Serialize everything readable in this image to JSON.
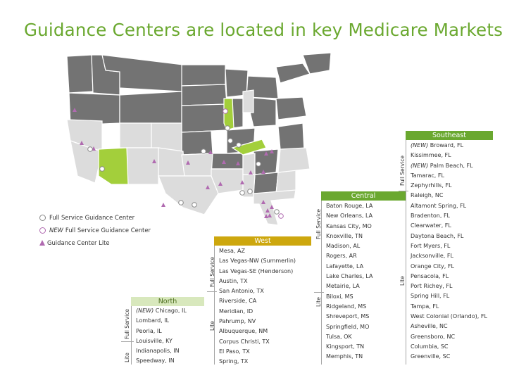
{
  "title": "Guidance Centers are located in key Medicare Markets",
  "colors": {
    "accent_green": "#6aa82f",
    "west_gold": "#cda70e",
    "state_dark": "#737373",
    "state_light": "#dcdcdc",
    "highlight_green": "#a3cf3b",
    "marker_purple": "#b06ab0"
  },
  "legend": {
    "full_service": "Full Service Guidance Center",
    "new_tag": "NEW",
    "new_full_service": "Full Service Guidance Center",
    "lite": "Guidance Center Lite"
  },
  "north": {
    "header": "North",
    "full_service_label": "Full Service",
    "lite_label": "Lite",
    "full_service": [
      {
        "new": "(NEW)",
        "name": "Chicago, IL"
      },
      {
        "new": "",
        "name": "Lombard, IL"
      },
      {
        "new": "",
        "name": "Peoria, IL"
      },
      {
        "new": "",
        "name": "Louisville, KY"
      }
    ],
    "lite": [
      {
        "new": "",
        "name": "Indianapolis, IN"
      },
      {
        "new": "",
        "name": "Speedway, IN"
      }
    ]
  },
  "west": {
    "header": "West",
    "full_service_label": "Full Service",
    "lite_label": "Lite",
    "full_service": [
      "Mesa, AZ",
      "Las Vegas-NW (Summerlin)",
      "Las Vegas-SE (Henderson)",
      "Austin, TX",
      "San Antonio, TX"
    ],
    "lite": [
      "Riverside, CA",
      "Meridian, ID",
      "Pahrump, NV",
      "Albuquerque, NM",
      "Corpus Christi, TX",
      "El Paso, TX",
      "Spring, TX"
    ]
  },
  "central": {
    "header": "Central",
    "full_service_label": "Full Service",
    "lite_label": "Lite",
    "full_service": [
      "Baton Rouge, LA",
      "New Orleans, LA",
      "Kansas City, MO",
      "Knoxville, TN",
      "Madison, AL",
      "Rogers, AR",
      "Lafayette, LA",
      "Lake Charles, LA",
      "Metairie, LA"
    ],
    "lite": [
      "Biloxi, MS",
      "Ridgeland, MS",
      "Shreveport, MS",
      "Springfield, MO",
      "Tulsa, OK",
      "Kingsport, TN",
      "Memphis, TN"
    ]
  },
  "southeast": {
    "header": "Southeast",
    "full_service_label": "Full Service",
    "lite_label": "Lite",
    "full_service": [
      {
        "new": "(NEW)",
        "name": "Broward, FL"
      },
      {
        "new": "",
        "name": "Kissimmee, FL"
      },
      {
        "new": "(NEW)",
        "name": "Palm Beach, FL"
      },
      {
        "new": "",
        "name": "Tamarac, FL"
      },
      {
        "new": "",
        "name": "Zephyrhills, FL"
      }
    ],
    "lite": [
      "Raleigh, NC",
      "Altamont Spring, FL",
      "Bradenton, FL",
      "Clearwater, FL",
      "Daytona Beach, FL",
      "Fort Myers, FL",
      "Jacksonville, FL",
      "Orange City, FL",
      "Pensacola, FL",
      "Port Richey, FL",
      "Spring Hill, FL",
      "Tampa, FL",
      "West Colonial (Orlando), FL",
      "Asheville, NC",
      "Greensboro, NC",
      "Columbia, SC",
      "Greenville, SC"
    ]
  }
}
